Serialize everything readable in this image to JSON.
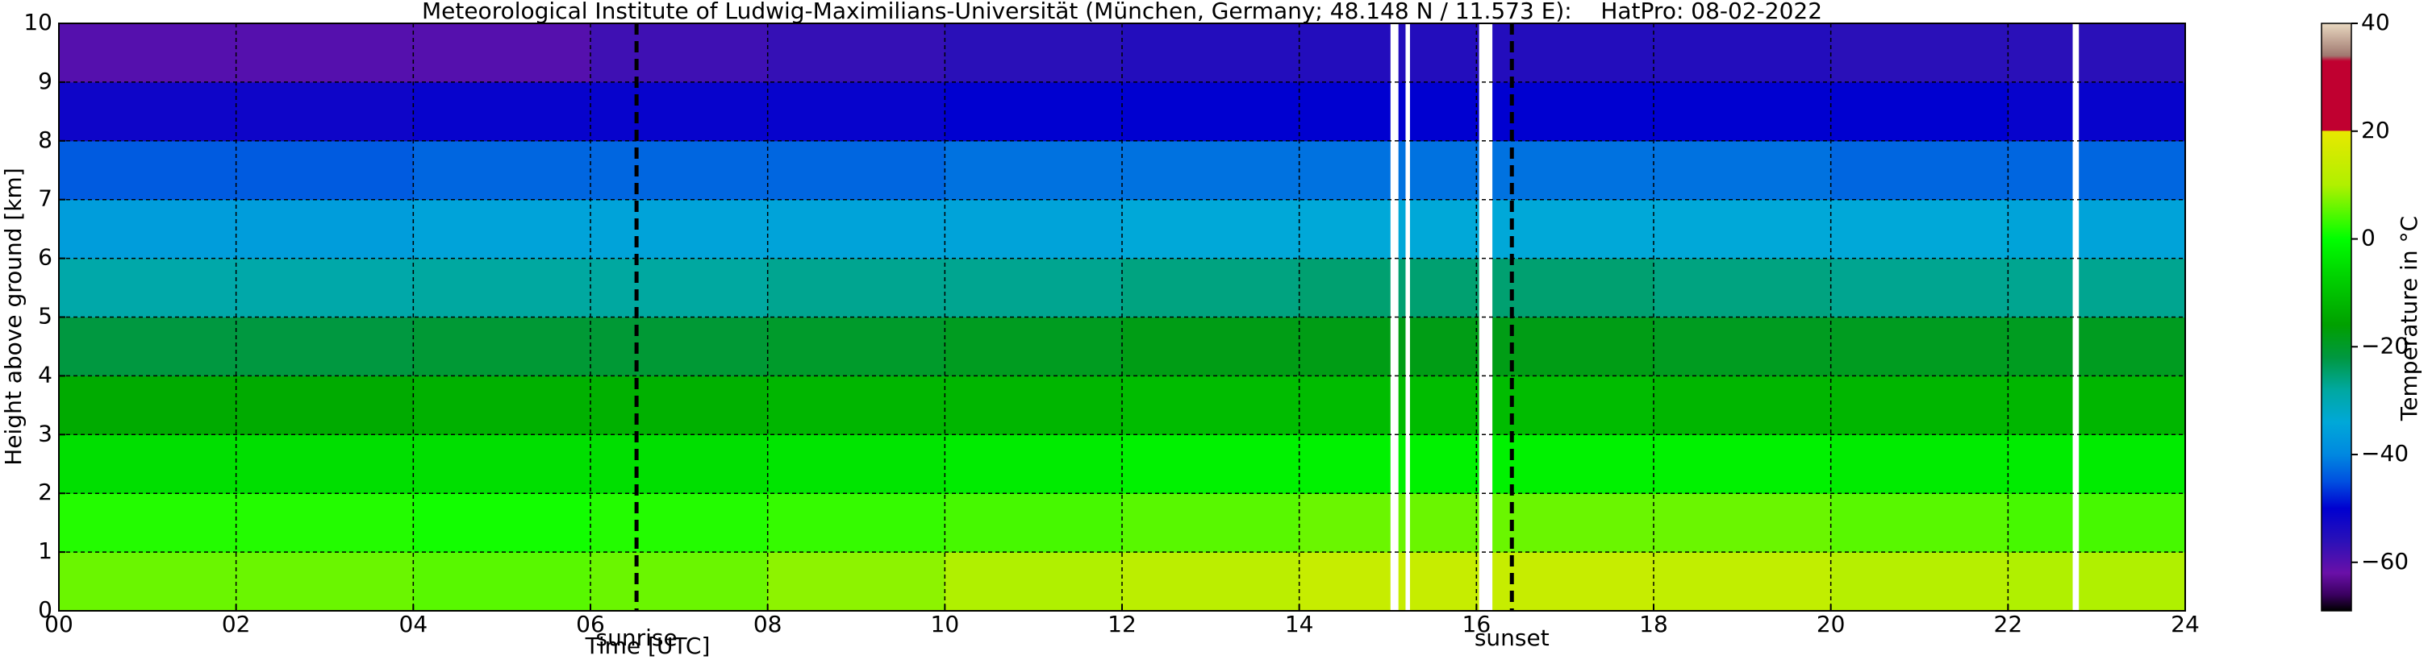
{
  "chart_data": {
    "type": "heatmap",
    "title": "Meteorological Institute of Ludwig-Maximilians-Universität (München, Germany; 48.148 N / 11.573 E):    HatPro: 08-02-2022",
    "x_label": "Time [UTC]",
    "y_label": "Height above ground [km]",
    "x": [
      0,
      2,
      4,
      6,
      8,
      10,
      12,
      14,
      16,
      18,
      20,
      22,
      24
    ],
    "y": [
      0,
      1,
      2,
      3,
      4,
      5,
      6,
      7,
      8,
      9,
      10
    ],
    "z": [
      [
        6,
        6,
        5,
        6,
        8,
        10,
        12,
        14,
        14,
        13,
        11,
        10
      ],
      [
        2,
        2,
        1,
        2,
        3,
        4,
        5,
        6,
        6,
        6,
        5,
        4
      ],
      [
        -5,
        -5,
        -5,
        -5,
        -4,
        -3,
        -2,
        -2,
        -2,
        -2,
        -3,
        -3
      ],
      [
        -14,
        -14,
        -13,
        -13,
        -12,
        -12,
        -11,
        -11,
        -11,
        -12,
        -12,
        -12
      ],
      [
        -22,
        -22,
        -21,
        -21,
        -20,
        -19,
        -18,
        -18,
        -18,
        -19,
        -19,
        -19
      ],
      [
        -29,
        -29,
        -28,
        -28,
        -27,
        -27,
        -26,
        -25,
        -25,
        -26,
        -27,
        -27
      ],
      [
        -36,
        -36,
        -35,
        -35,
        -35,
        -35,
        -34,
        -34,
        -34,
        -34,
        -34,
        -35
      ],
      [
        -44,
        -44,
        -43,
        -43,
        -43,
        -42,
        -42,
        -42,
        -42,
        -42,
        -43,
        -43
      ],
      [
        -52,
        -52,
        -51,
        -51,
        -51,
        -50,
        -50,
        -50,
        -50,
        -50,
        -50,
        -51
      ],
      [
        -60,
        -60,
        -60,
        -58,
        -57,
        -56,
        -55,
        -55,
        -55,
        -55,
        -56,
        -56
      ]
    ],
    "gaps": [
      [
        15.03,
        15.12
      ],
      [
        15.2,
        15.25
      ],
      [
        16.03,
        16.18
      ],
      [
        22.73,
        22.8
      ]
    ],
    "annotations": [
      {
        "x": 6.52,
        "label": "sunrise"
      },
      {
        "x": 16.4,
        "label": "sunset"
      }
    ],
    "xlim": [
      0,
      24
    ],
    "ylim": [
      0,
      10
    ],
    "xticks": [
      {
        "value": 0,
        "label": "00"
      },
      {
        "value": 2,
        "label": "02"
      },
      {
        "value": 4,
        "label": "04"
      },
      {
        "value": 6,
        "label": "06"
      },
      {
        "value": 8,
        "label": "08"
      },
      10,
      12,
      14,
      16,
      18,
      20,
      22,
      24
    ],
    "yticks": [
      0,
      1,
      2,
      3,
      4,
      5,
      6,
      7,
      8,
      9,
      10
    ],
    "grid": true,
    "colorbar_label": "Temperature in °C",
    "clim": [
      -69,
      40
    ],
    "cticks": [
      {
        "value": -60,
        "label": "−60"
      },
      {
        "value": -40,
        "label": "−40"
      },
      {
        "value": -20,
        "label": "−20"
      },
      0,
      20,
      40
    ],
    "colormap": [
      {
        "value": -69,
        "color": "#000000"
      },
      {
        "value": -66,
        "color": "#3a0060"
      },
      {
        "value": -62,
        "color": "#6a10a8"
      },
      {
        "value": -56,
        "color": "#2a10b8"
      },
      {
        "value": -50,
        "color": "#0000d0"
      },
      {
        "value": -45,
        "color": "#0050e0"
      },
      {
        "value": -40,
        "color": "#0088e0"
      },
      {
        "value": -34,
        "color": "#00a8d8"
      },
      {
        "value": -28,
        "color": "#00a8a0"
      },
      {
        "value": -22,
        "color": "#009840"
      },
      {
        "value": -16,
        "color": "#00a000"
      },
      {
        "value": -6,
        "color": "#00d800"
      },
      {
        "value": 0,
        "color": "#00ff00"
      },
      {
        "value": 10,
        "color": "#b0f000"
      },
      {
        "value": 20,
        "color": "#e8e800"
      },
      {
        "value": 20.1,
        "color": "#c00030"
      },
      {
        "value": 33,
        "color": "#c00030"
      },
      {
        "value": 34,
        "color": "#a07870"
      },
      {
        "value": 40,
        "color": "#e8d8c0"
      }
    ]
  }
}
